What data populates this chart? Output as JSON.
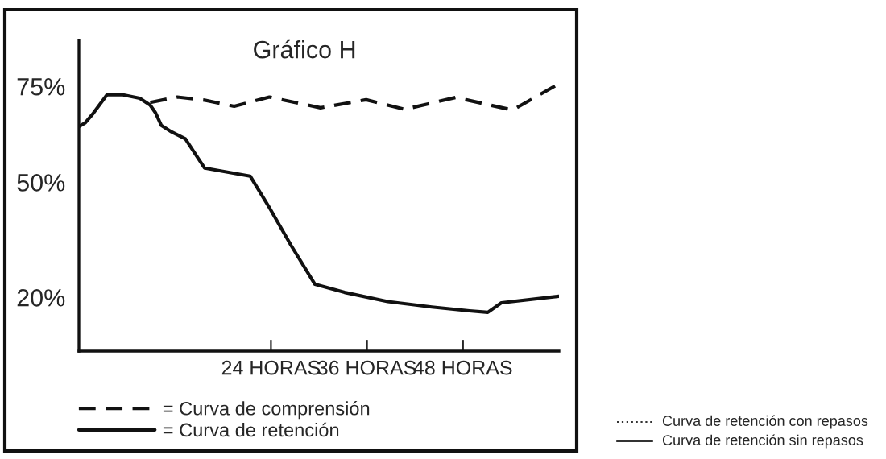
{
  "chart_data": {
    "type": "line",
    "title": "Gráfico H",
    "xlim": [
      0,
      60
    ],
    "xticks": [
      {
        "value": 24,
        "label": "24 HORAS"
      },
      {
        "value": 36,
        "label": "36 HORAS"
      },
      {
        "value": 48,
        "label": "48 HORAS"
      }
    ],
    "ylim": [
      6,
      87
    ],
    "yticks": [
      {
        "value": 20,
        "label": "20%"
      },
      {
        "value": 50,
        "label": "50%"
      },
      {
        "value": 75,
        "label": "75%"
      }
    ],
    "grid": false,
    "legend": "bottom",
    "marker": "none",
    "series": [
      {
        "name": "= Curva de comprensión",
        "color": "#111111",
        "line_style": "dashed",
        "x": [
          8.9,
          12.3,
          15.7,
          19.4,
          23.8,
          30.2,
          35.9,
          40.7,
          47.1,
          54.2,
          60
        ],
        "values": [
          70.8,
          72.2,
          71.4,
          69.8,
          72.2,
          69.4,
          71.5,
          69.0,
          72.1,
          68.8,
          75.7
        ]
      },
      {
        "name": "= Curva de retención",
        "color": "#111111",
        "line_style": "solid",
        "x": [
          0,
          0.8,
          1.8,
          3.5,
          5.5,
          7.6,
          8.9,
          9.6,
          10.3,
          11.6,
          13.3,
          15.7,
          21.4,
          23.8,
          26.5,
          29.5,
          33.2,
          38.6,
          44.1,
          48.8,
          51.1,
          52.8,
          60
        ],
        "values": [
          64.5,
          65.5,
          68.0,
          72.8,
          72.8,
          71.9,
          70.1,
          68.0,
          64.8,
          63.1,
          61.3,
          53.7,
          51.6,
          43.4,
          33.6,
          23.4,
          21.3,
          18.9,
          17.5,
          16.5,
          16.1,
          18.6,
          20.3
        ]
      }
    ],
    "annotations": [
      "Curva de retención con repasos",
      "Curva de retención sin repasos"
    ]
  }
}
